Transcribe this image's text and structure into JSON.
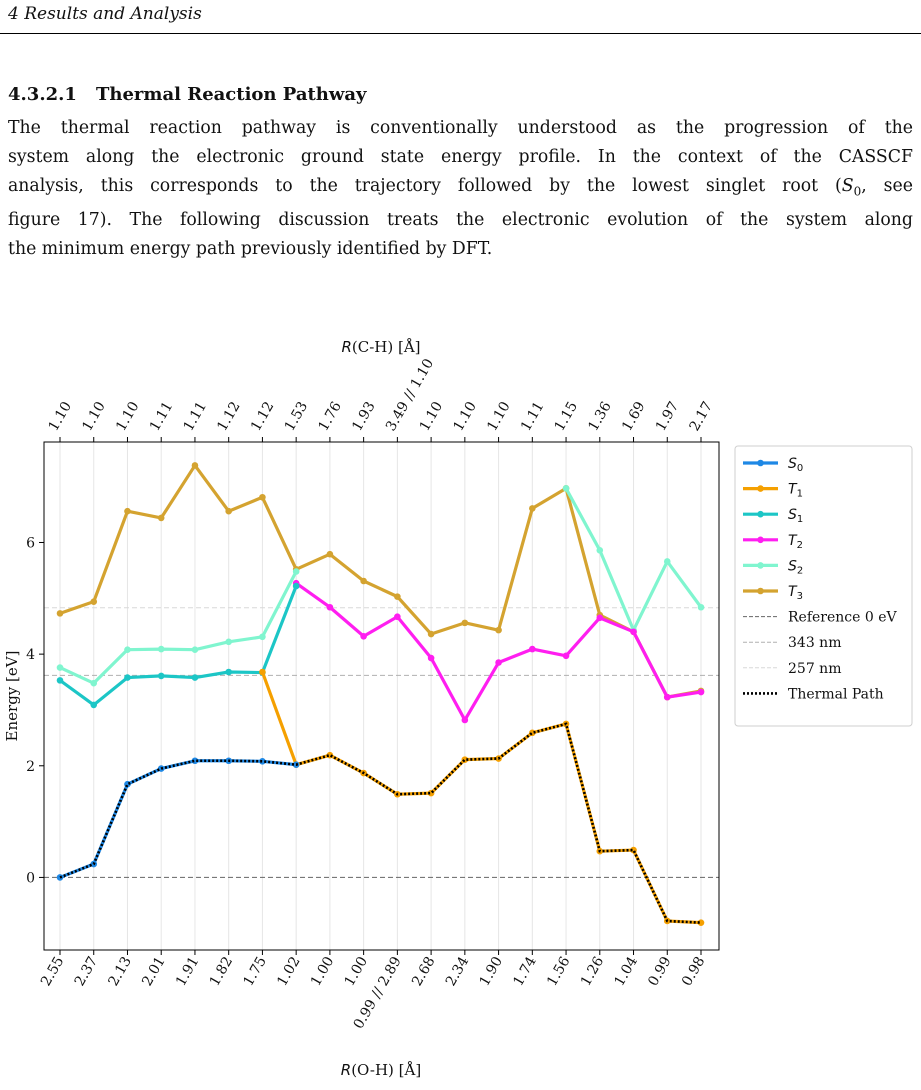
{
  "page": {
    "running_head": "4   Results and Analysis",
    "section_number": "4.3.2.1",
    "section_title": "Thermal Reaction Pathway",
    "paragraph_lines": [
      [
        "The thermal reaction pathway is conventionally understood as the progression of the"
      ],
      [
        "system along the electronic ground state energy profile. In the context of the CASSCF"
      ],
      [
        "analysis, this corresponds to the trajectory followed by the lowest singlet root (",
        {
          "m": "S",
          "sub": "0"
        },
        ", see"
      ],
      [
        "figure 17). The following discussion treats the electronic evolution of the system along"
      ],
      [
        "the minimum energy path previously identified by DFT."
      ]
    ]
  },
  "chart_data": {
    "type": "line",
    "xlabel_top": {
      "sym": "R",
      "rest": "(C-H) [Å]"
    },
    "xlabel_bottom": {
      "sym": "R",
      "rest": "(O-H) [Å]"
    },
    "ylabel": "Energy [eV]",
    "yticks": [
      0,
      2,
      4,
      6
    ],
    "ylim": [
      -1.3,
      7.8
    ],
    "top_tick_labels": [
      "1.10",
      "1.10",
      "1.10",
      "1.11",
      "1.11",
      "1.12",
      "1.12",
      "1.53",
      "1.76",
      "1.93",
      "3.49 // 1.10",
      "1.10",
      "1.10",
      "1.10",
      "1.11",
      "1.15",
      "1.36",
      "1.69",
      "1.97",
      "2.17"
    ],
    "bottom_tick_labels": [
      "2.55",
      "2.37",
      "2.13",
      "2.01",
      "1.91",
      "1.82",
      "1.75",
      "1.02",
      "1.00",
      "1.00",
      "0.99 // 2.89",
      "2.68",
      "2.34",
      "1.90",
      "1.74",
      "1.56",
      "1.26",
      "1.04",
      "0.99",
      "0.98"
    ],
    "grid": "vertical",
    "legend_position": "outside-right",
    "series": [
      {
        "name": "S",
        "sub": "0",
        "color": "#1e88e5",
        "values": [
          0.0,
          0.24,
          1.67,
          1.95,
          2.09,
          2.09,
          2.08,
          2.02,
          null,
          null,
          null,
          null,
          null,
          null,
          null,
          null,
          null,
          null,
          null,
          null
        ]
      },
      {
        "name": "T",
        "sub": "1",
        "color": "#f5a000",
        "values": [
          null,
          null,
          null,
          null,
          null,
          null,
          3.68,
          2.02,
          2.19,
          1.87,
          1.49,
          1.51,
          2.11,
          2.13,
          2.59,
          2.75,
          0.47,
          0.49,
          -0.78,
          -0.81
        ]
      },
      {
        "name": "S",
        "sub": "1",
        "color": "#1cc6c6",
        "values": [
          3.53,
          3.09,
          3.58,
          3.61,
          3.58,
          3.68,
          3.67,
          5.22,
          null,
          null,
          null,
          null,
          null,
          null,
          null,
          null,
          null,
          null,
          null,
          null
        ]
      },
      {
        "name": "T",
        "sub": "2",
        "color": "#ff1ef0",
        "values": [
          null,
          null,
          null,
          null,
          null,
          null,
          null,
          5.27,
          4.84,
          4.32,
          4.67,
          3.93,
          2.82,
          3.85,
          4.09,
          3.97,
          4.65,
          4.4,
          3.23,
          3.32
        ]
      },
      {
        "name": "S",
        "sub": "2",
        "color": "#80f5cf",
        "values": [
          3.76,
          3.48,
          4.08,
          4.09,
          4.08,
          4.22,
          4.31,
          5.48,
          null,
          null,
          null,
          null,
          null,
          null,
          null,
          6.97,
          5.86,
          4.43,
          5.66,
          4.84
        ]
      },
      {
        "name": "T",
        "sub": "3",
        "color": "#d4a330",
        "values": [
          4.73,
          4.94,
          6.56,
          6.44,
          7.38,
          6.56,
          6.81,
          5.52,
          5.79,
          5.31,
          5.03,
          4.36,
          4.56,
          4.43,
          6.61,
          6.97,
          4.7,
          4.4,
          3.23,
          3.34
        ]
      }
    ],
    "reference_lines": [
      {
        "name": "Reference 0 eV",
        "y": 0.0,
        "color": "#666666",
        "style": "dashed"
      },
      {
        "name": "343 nm",
        "y": 3.62,
        "color": "#b0b0b0",
        "style": "dashed"
      },
      {
        "name": "257 nm",
        "y": 4.83,
        "color": "#d8d8d8",
        "style": "dashed"
      }
    ],
    "thermal_path": {
      "name": "Thermal Path",
      "color": "#000000",
      "values": [
        0.0,
        0.24,
        1.67,
        1.95,
        2.09,
        2.09,
        2.08,
        2.02,
        2.19,
        1.87,
        1.49,
        1.51,
        2.11,
        2.13,
        2.59,
        2.75,
        0.47,
        0.49,
        -0.78,
        -0.81
      ]
    }
  }
}
